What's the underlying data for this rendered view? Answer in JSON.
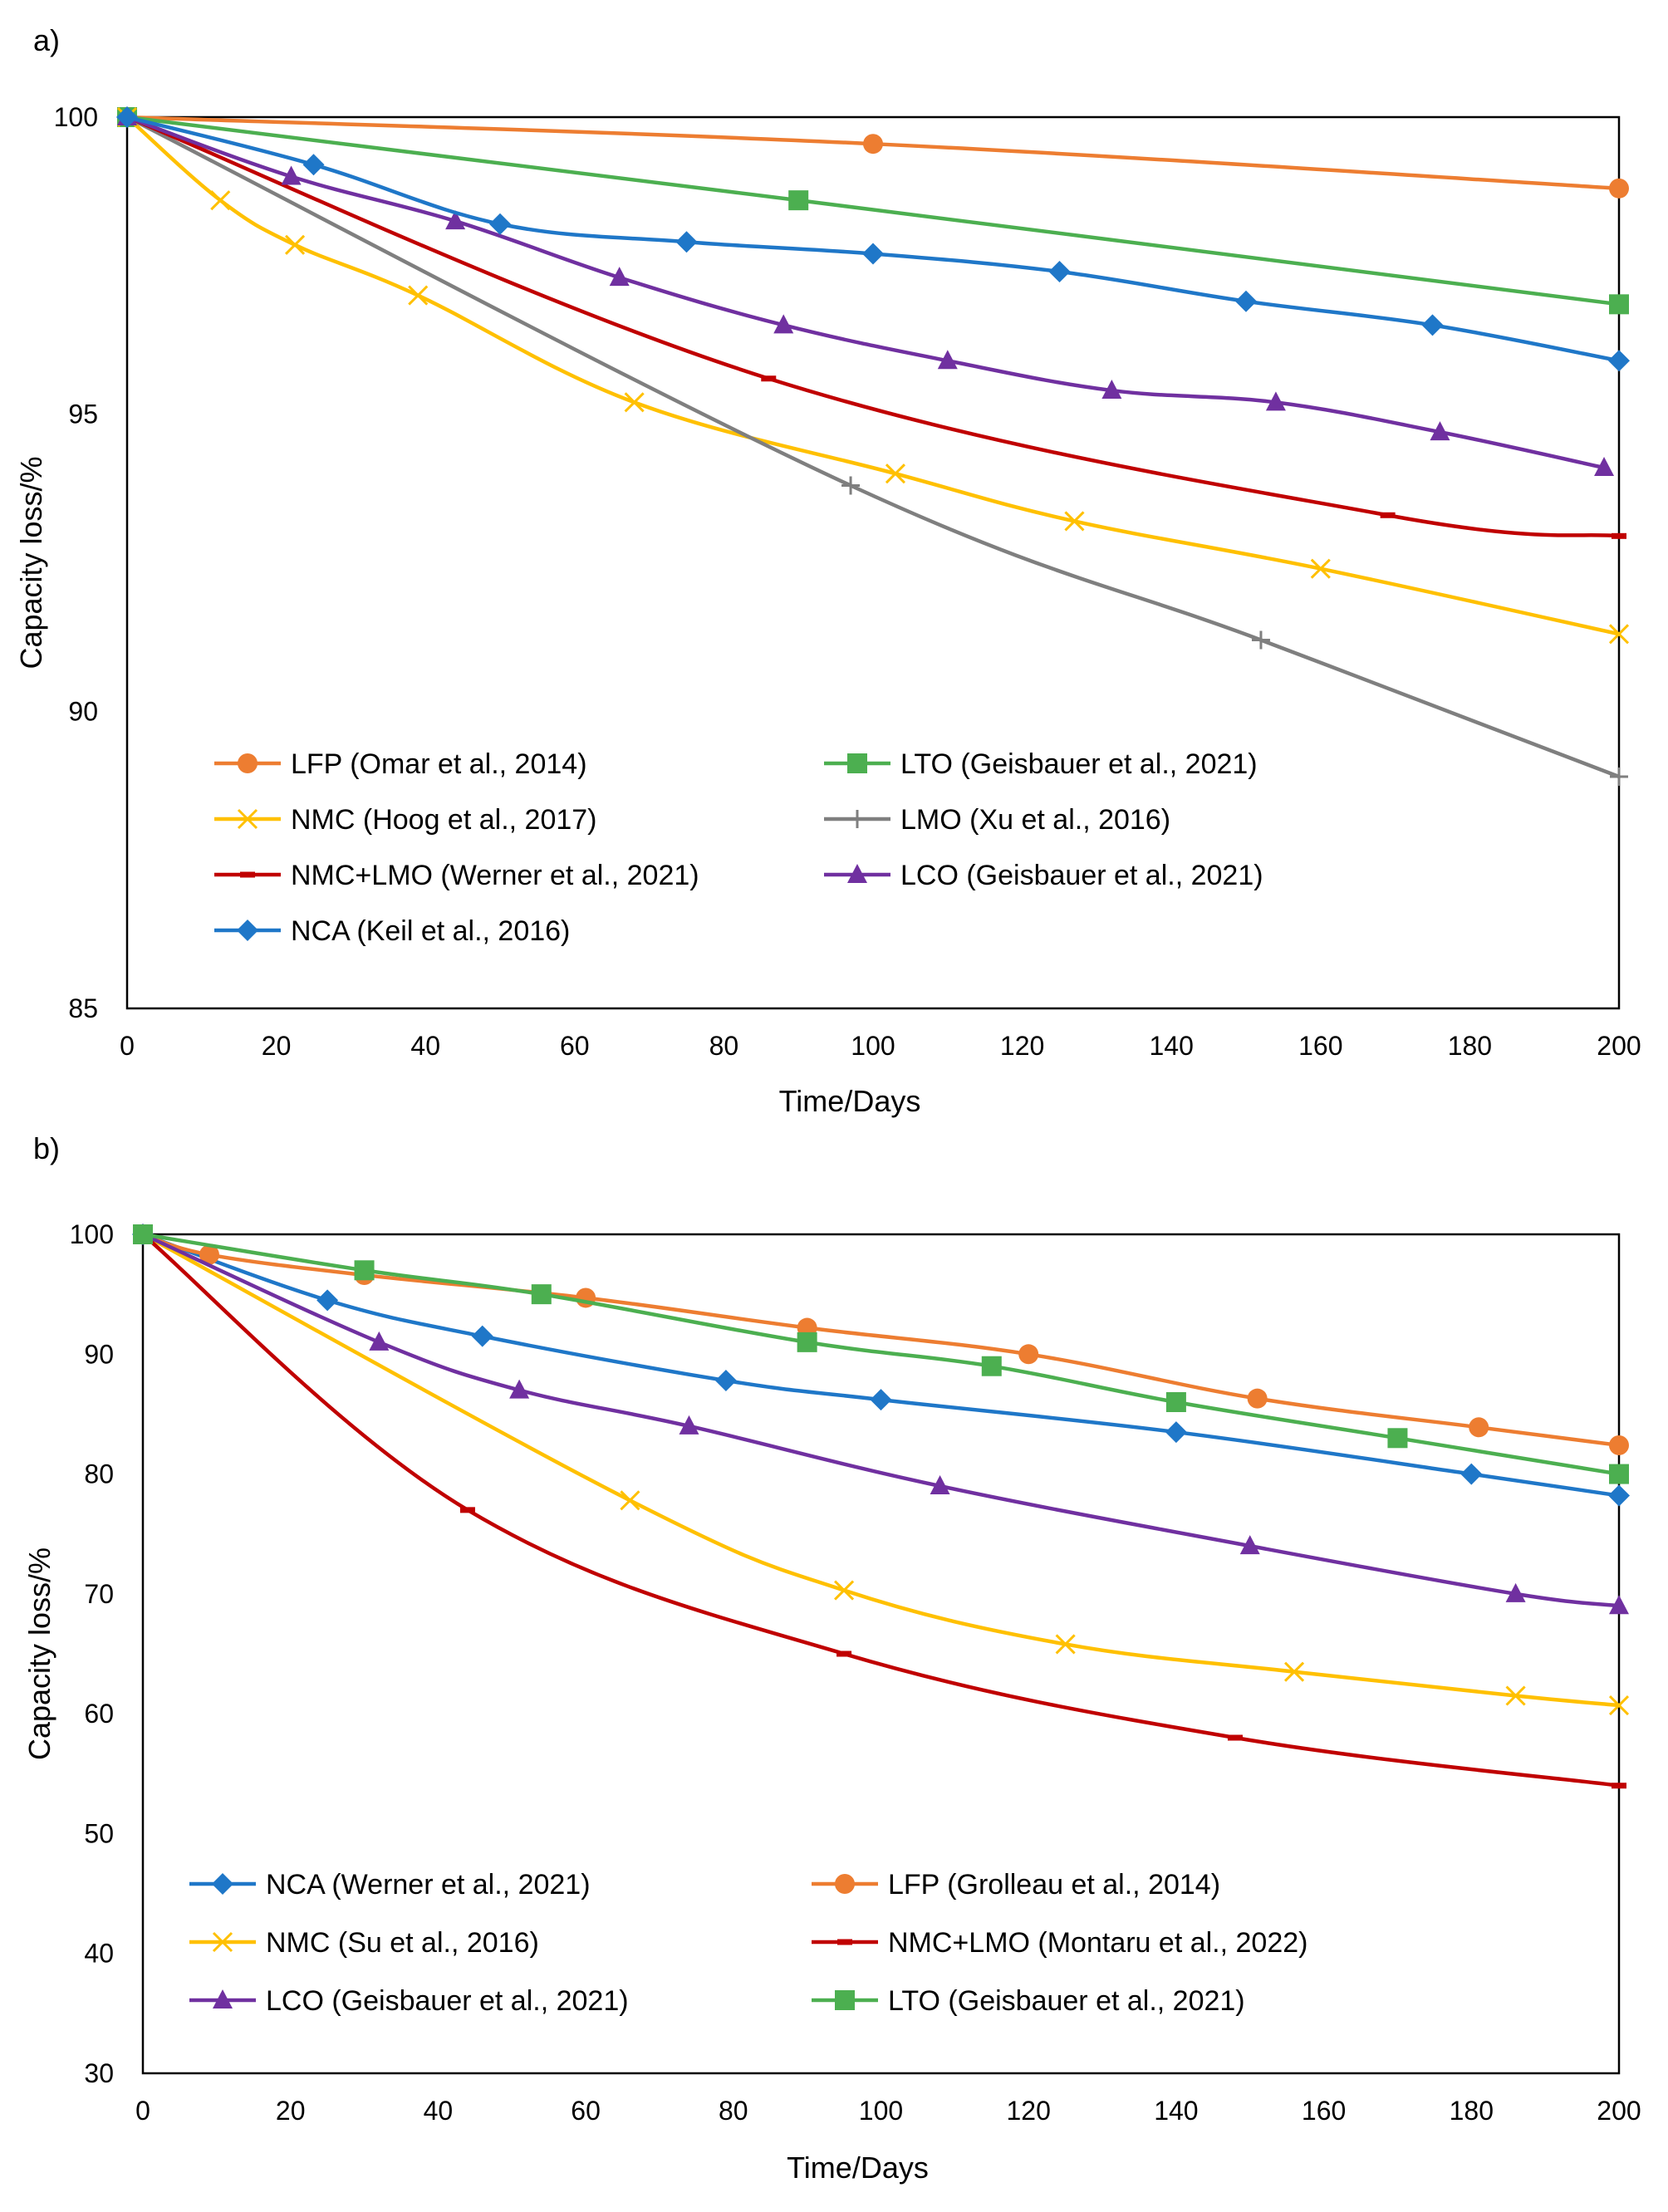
{
  "panels": [
    {
      "label": "a)",
      "chart_data": {
        "type": "line",
        "title": "",
        "xlabel": "Time/Days",
        "ylabel": "Capacity loss/%",
        "xlim": [
          0,
          200
        ],
        "ylim": [
          85,
          100
        ],
        "xticks": [
          0,
          20,
          40,
          60,
          80,
          100,
          120,
          140,
          160,
          180,
          200
        ],
        "yticks": [
          85,
          90,
          95,
          100
        ],
        "legend": "bottom-left",
        "series": [
          {
            "name": "LFP (Omar et al., 2014)",
            "color": "#ED7D31",
            "marker": "circle",
            "x": [
              0,
              100,
              200
            ],
            "y": [
              100,
              99.55,
              98.8
            ]
          },
          {
            "name": "LTO (Geisbauer et al., 2021)",
            "color": "#4CAF50",
            "marker": "square",
            "x": [
              0,
              90,
              200
            ],
            "y": [
              100,
              98.6,
              96.85
            ]
          },
          {
            "name": "NMC (Hoog et al., 2017)",
            "color": "#FFC000",
            "marker": "x",
            "x": [
              0,
              12.5,
              22.5,
              39,
              68,
              103,
              127,
              160,
              200
            ],
            "y": [
              100,
              98.6,
              97.85,
              97.0,
              95.2,
              94.0,
              93.2,
              92.4,
              91.3
            ]
          },
          {
            "name": "LMO (Xu et al., 2016)",
            "color": "#7F7F7F",
            "marker": "plus",
            "x": [
              0,
              97,
              152,
              200
            ],
            "y": [
              100,
              93.8,
              91.2,
              88.9
            ]
          },
          {
            "name": "NMC+LMO (Werner et al., 2021)",
            "color": "#C00000",
            "marker": "dash",
            "x": [
              0,
              86,
              169,
              200
            ],
            "y": [
              100,
              95.6,
              93.3,
              92.95
            ]
          },
          {
            "name": "LCO (Geisbauer et al., 2021)",
            "color": "#7030A0",
            "marker": "triangle",
            "x": [
              0,
              22,
              44,
              66,
              88,
              110,
              132,
              154,
              176,
              198
            ],
            "y": [
              100,
              99.0,
              98.25,
              97.3,
              96.5,
              95.9,
              95.4,
              95.2,
              94.7,
              94.1
            ]
          },
          {
            "name": "NCA (Keil et al., 2016)",
            "color": "#1F77C8",
            "marker": "diamond",
            "x": [
              0,
              25,
              50,
              75,
              100,
              125,
              150,
              175,
              200
            ],
            "y": [
              100,
              99.2,
              98.2,
              97.9,
              97.7,
              97.4,
              96.9,
              96.5,
              95.9
            ]
          }
        ]
      }
    },
    {
      "label": "b)",
      "chart_data": {
        "type": "line",
        "title": "",
        "xlabel": "Time/Days",
        "ylabel": "Capacity loss/%",
        "xlim": [
          0,
          200
        ],
        "ylim": [
          30,
          100
        ],
        "xticks": [
          0,
          20,
          40,
          60,
          80,
          100,
          120,
          140,
          160,
          180,
          200
        ],
        "yticks": [
          30,
          40,
          50,
          60,
          70,
          80,
          90,
          100
        ],
        "legend": "bottom-left",
        "series": [
          {
            "name": "NCA (Werner et al., 2021)",
            "color": "#1F77C8",
            "marker": "diamond",
            "x": [
              0,
              25,
              46,
              79,
              100,
              140,
              180,
              200
            ],
            "y": [
              100,
              94.5,
              91.5,
              87.8,
              86.2,
              83.5,
              80.0,
              78.2
            ]
          },
          {
            "name": "LFP (Grolleau et al., 2014)",
            "color": "#ED7D31",
            "marker": "circle",
            "x": [
              0,
              9,
              30,
              60,
              90,
              120,
              151,
              181,
              200
            ],
            "y": [
              100,
              98.3,
              96.6,
              94.7,
              92.2,
              90.0,
              86.3,
              83.9,
              82.4
            ]
          },
          {
            "name": "NMC (Su et al., 2016)",
            "color": "#FFC000",
            "marker": "x",
            "x": [
              0,
              66,
              95,
              125,
              156,
              186,
              200
            ],
            "y": [
              100,
              77.8,
              70.3,
              65.8,
              63.5,
              61.5,
              60.7
            ]
          },
          {
            "name": "NMC+LMO (Montaru et al., 2022)",
            "color": "#C00000",
            "marker": "dash",
            "x": [
              0,
              44,
              95,
              148,
              200
            ],
            "y": [
              100,
              77.0,
              65.0,
              58.0,
              54.0
            ]
          },
          {
            "name": "LCO (Geisbauer et al., 2021)",
            "color": "#7030A0",
            "marker": "triangle",
            "x": [
              0,
              32,
              51,
              74,
              108,
              150,
              186,
              200
            ],
            "y": [
              100,
              91.0,
              87.0,
              84.0,
              79.0,
              74.0,
              70.0,
              69.0
            ]
          },
          {
            "name": "LTO (Geisbauer et al., 2021)",
            "color": "#4CAF50",
            "marker": "square",
            "x": [
              0,
              30,
              54,
              90,
              115,
              140,
              170,
              200
            ],
            "y": [
              100,
              97.0,
              95.0,
              91.0,
              89.0,
              86.0,
              83.0,
              80.0
            ]
          }
        ]
      }
    }
  ]
}
